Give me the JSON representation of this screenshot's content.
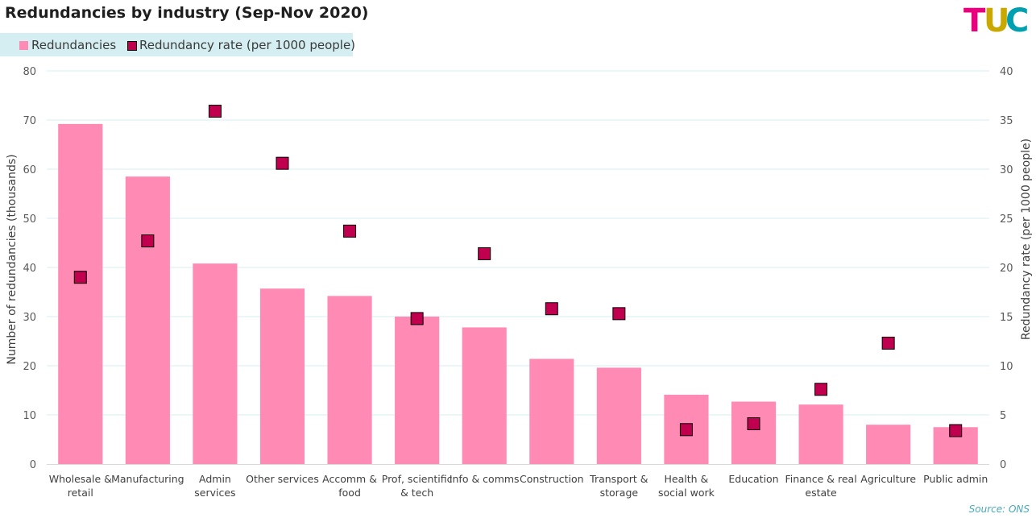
{
  "chart_data": {
    "type": "bar",
    "title": "Redundancies by industry (Sep-Nov 2020)",
    "categories": [
      [
        "Wholesale &",
        "retail"
      ],
      [
        "Manufacturing"
      ],
      [
        "Admin",
        "services"
      ],
      [
        "Other services"
      ],
      [
        "Accomm &",
        "food"
      ],
      [
        "Prof, scientific",
        "& tech"
      ],
      [
        "Info & comms"
      ],
      [
        "Construction"
      ],
      [
        "Transport &",
        "storage"
      ],
      [
        "Health &",
        "social work"
      ],
      [
        "Education"
      ],
      [
        "Finance & real",
        "estate"
      ],
      [
        "Agriculture"
      ],
      [
        "Public admin"
      ]
    ],
    "series": [
      {
        "name": "Redundancies",
        "kind": "bar",
        "axis": "left",
        "color": "#ff8ab4",
        "values": [
          69.2,
          58.5,
          40.8,
          35.7,
          34.2,
          30.0,
          27.8,
          21.4,
          19.6,
          14.1,
          12.7,
          12.1,
          8.0,
          7.5
        ]
      },
      {
        "name": "Redundancy rate (per 1000 people)",
        "kind": "marker",
        "axis": "right",
        "color": "#c0004f",
        "values": [
          19.0,
          22.7,
          35.9,
          30.6,
          23.7,
          14.8,
          21.4,
          15.8,
          15.3,
          3.5,
          4.1,
          7.6,
          12.3,
          3.4
        ]
      }
    ],
    "ylabel": "Number of redundancies (thousands)",
    "ylim": [
      0,
      80
    ],
    "yticks": [
      0,
      10,
      20,
      30,
      40,
      50,
      60,
      70,
      80
    ],
    "y2label": "Redundancy rate (per 1000 people)",
    "y2lim": [
      0,
      40
    ],
    "y2ticks": [
      0,
      5,
      10,
      15,
      20,
      25,
      30,
      35,
      40
    ],
    "grid": true,
    "legend": "top-left"
  },
  "legend": {
    "bar_label": "Redundancies",
    "marker_label": "Redundancy rate (per 1000 people)"
  },
  "logo": {
    "letters": [
      "T",
      "U",
      "C"
    ],
    "colors": [
      "#e8007d",
      "#c9a800",
      "#00a0b0"
    ]
  },
  "source": "Source: ONS"
}
